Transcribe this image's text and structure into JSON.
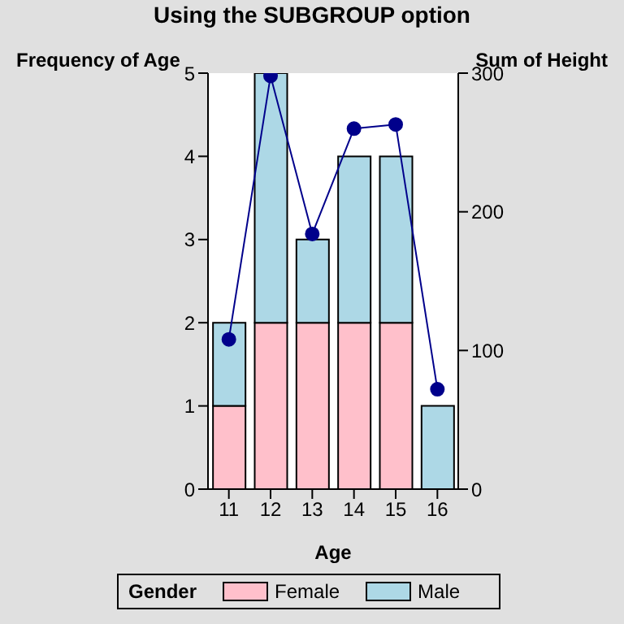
{
  "chart_data": {
    "type": "bar",
    "title": "Using the SUBGROUP option",
    "xlabel": "Age",
    "ylabel": "Frequency of Age",
    "y2label": "Sum of Height",
    "legend_title": "Gender",
    "categories": [
      "11",
      "12",
      "13",
      "14",
      "15",
      "16"
    ],
    "stacked": true,
    "series": [
      {
        "name": "Female",
        "color": "#ffc0cb",
        "values": [
          1,
          2,
          2,
          2,
          2,
          0
        ]
      },
      {
        "name": "Male",
        "color": "#add8e6",
        "values": [
          1,
          3,
          1,
          2,
          2,
          1
        ]
      },
      {
        "type": "line",
        "axis": "y2",
        "color": "#00008b",
        "values": [
          108,
          298,
          184,
          260,
          263,
          72
        ]
      }
    ],
    "ylim": [
      0,
      5
    ],
    "yticks": [
      0,
      1,
      2,
      3,
      4,
      5
    ],
    "y2lim": [
      0,
      300
    ],
    "y2ticks": [
      0,
      100,
      200,
      300
    ],
    "grid": false,
    "legend": "bottom",
    "marker": "circle"
  }
}
